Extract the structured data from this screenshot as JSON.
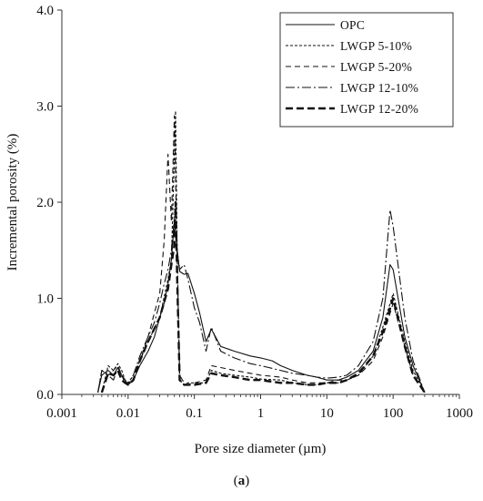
{
  "caption": {
    "open": "(",
    "letter": "a",
    "close": ")"
  },
  "chart_data": {
    "type": "line",
    "xlabel": "Pore size diameter (µm)",
    "ylabel": "Incremental porosity (%)",
    "xscale": "log",
    "xlim": [
      0.001,
      1000
    ],
    "ylim": [
      0,
      4.0
    ],
    "x_ticks": [
      0.001,
      0.01,
      0.1,
      1,
      10,
      100,
      1000
    ],
    "x_tick_labels": [
      "0.001",
      "0.01",
      "0.1",
      "1",
      "10",
      "100",
      "1000"
    ],
    "y_ticks": [
      0,
      1,
      2,
      3,
      4
    ],
    "y_tick_labels": [
      "0.0",
      "1.0",
      "2.0",
      "3.0",
      "4.0"
    ],
    "grid": false,
    "legend_position": "top-right",
    "series": [
      {
        "name": "OPC",
        "color": "#111111",
        "dash": "solid",
        "points": [
          [
            0.0035,
            0.02
          ],
          [
            0.004,
            0.2
          ],
          [
            0.005,
            0.25
          ],
          [
            0.006,
            0.2
          ],
          [
            0.007,
            0.28
          ],
          [
            0.008,
            0.2
          ],
          [
            0.009,
            0.15
          ],
          [
            0.01,
            0.1
          ],
          [
            0.012,
            0.15
          ],
          [
            0.015,
            0.3
          ],
          [
            0.02,
            0.45
          ],
          [
            0.025,
            0.6
          ],
          [
            0.03,
            0.8
          ],
          [
            0.035,
            0.95
          ],
          [
            0.04,
            1.15
          ],
          [
            0.045,
            1.4
          ],
          [
            0.05,
            1.8
          ],
          [
            0.055,
            1.5
          ],
          [
            0.06,
            1.28
          ],
          [
            0.07,
            1.25
          ],
          [
            0.08,
            1.26
          ],
          [
            0.1,
            1.05
          ],
          [
            0.12,
            0.85
          ],
          [
            0.15,
            0.55
          ],
          [
            0.18,
            0.68
          ],
          [
            0.25,
            0.5
          ],
          [
            0.4,
            0.45
          ],
          [
            0.7,
            0.4
          ],
          [
            1,
            0.38
          ],
          [
            1.5,
            0.35
          ],
          [
            2,
            0.3
          ],
          [
            3,
            0.25
          ],
          [
            5,
            0.2
          ],
          [
            7,
            0.18
          ],
          [
            10,
            0.15
          ],
          [
            15,
            0.15
          ],
          [
            20,
            0.18
          ],
          [
            30,
            0.25
          ],
          [
            50,
            0.45
          ],
          [
            70,
            0.8
          ],
          [
            90,
            1.35
          ],
          [
            100,
            1.3
          ],
          [
            150,
            0.6
          ],
          [
            200,
            0.3
          ],
          [
            300,
            0.02
          ]
        ]
      },
      {
        "name": "LWGP 5-10%",
        "color": "#111111",
        "dash": "3,2",
        "points": [
          [
            0.004,
            0.02
          ],
          [
            0.005,
            0.3
          ],
          [
            0.006,
            0.25
          ],
          [
            0.007,
            0.32
          ],
          [
            0.008,
            0.25
          ],
          [
            0.009,
            0.15
          ],
          [
            0.01,
            0.12
          ],
          [
            0.012,
            0.2
          ],
          [
            0.015,
            0.35
          ],
          [
            0.02,
            0.55
          ],
          [
            0.03,
            0.8
          ],
          [
            0.04,
            1.2
          ],
          [
            0.045,
            1.4
          ],
          [
            0.05,
            2.5
          ],
          [
            0.052,
            2.95
          ],
          [
            0.055,
            1.5
          ],
          [
            0.06,
            0.15
          ],
          [
            0.07,
            0.1
          ],
          [
            0.08,
            0.12
          ],
          [
            0.1,
            0.12
          ],
          [
            0.15,
            0.12
          ],
          [
            0.18,
            0.25
          ],
          [
            0.25,
            0.22
          ],
          [
            0.4,
            0.2
          ],
          [
            0.7,
            0.18
          ],
          [
            1,
            0.16
          ],
          [
            2,
            0.15
          ],
          [
            3,
            0.12
          ],
          [
            5,
            0.1
          ],
          [
            7,
            0.1
          ],
          [
            10,
            0.12
          ],
          [
            15,
            0.12
          ],
          [
            20,
            0.15
          ],
          [
            30,
            0.2
          ],
          [
            50,
            0.4
          ],
          [
            70,
            0.7
          ],
          [
            100,
            1.05
          ],
          [
            150,
            0.55
          ],
          [
            200,
            0.25
          ],
          [
            300,
            0.02
          ]
        ]
      },
      {
        "name": "LWGP 5-20%",
        "color": "#111111",
        "dash": "6,4",
        "points": [
          [
            0.0035,
            0.02
          ],
          [
            0.004,
            0.25
          ],
          [
            0.005,
            0.2
          ],
          [
            0.006,
            0.25
          ],
          [
            0.007,
            0.3
          ],
          [
            0.008,
            0.2
          ],
          [
            0.009,
            0.12
          ],
          [
            0.01,
            0.1
          ],
          [
            0.012,
            0.15
          ],
          [
            0.015,
            0.35
          ],
          [
            0.02,
            0.6
          ],
          [
            0.025,
            0.85
          ],
          [
            0.03,
            1.05
          ],
          [
            0.035,
            1.6
          ],
          [
            0.04,
            2.5
          ],
          [
            0.045,
            1.8
          ],
          [
            0.05,
            2.9
          ],
          [
            0.055,
            1.4
          ],
          [
            0.06,
            0.2
          ],
          [
            0.07,
            0.12
          ],
          [
            0.08,
            0.1
          ],
          [
            0.1,
            0.12
          ],
          [
            0.15,
            0.15
          ],
          [
            0.18,
            0.3
          ],
          [
            0.25,
            0.28
          ],
          [
            0.4,
            0.25
          ],
          [
            0.7,
            0.22
          ],
          [
            1,
            0.2
          ],
          [
            2,
            0.18
          ],
          [
            3,
            0.15
          ],
          [
            5,
            0.12
          ],
          [
            7,
            0.12
          ],
          [
            10,
            0.12
          ],
          [
            15,
            0.15
          ],
          [
            20,
            0.15
          ],
          [
            30,
            0.2
          ],
          [
            50,
            0.35
          ],
          [
            70,
            0.6
          ],
          [
            100,
            0.95
          ],
          [
            150,
            0.5
          ],
          [
            200,
            0.2
          ],
          [
            300,
            0.02
          ]
        ]
      },
      {
        "name": "LWGP 12-10%",
        "color": "#111111",
        "dash": "10,3,2,3",
        "points": [
          [
            0.0035,
            0.02
          ],
          [
            0.004,
            0.25
          ],
          [
            0.005,
            0.2
          ],
          [
            0.006,
            0.15
          ],
          [
            0.007,
            0.28
          ],
          [
            0.008,
            0.2
          ],
          [
            0.009,
            0.15
          ],
          [
            0.01,
            0.1
          ],
          [
            0.012,
            0.2
          ],
          [
            0.015,
            0.4
          ],
          [
            0.02,
            0.6
          ],
          [
            0.025,
            0.75
          ],
          [
            0.03,
            0.95
          ],
          [
            0.035,
            1.15
          ],
          [
            0.04,
            1.3
          ],
          [
            0.045,
            1.5
          ],
          [
            0.05,
            1.85
          ],
          [
            0.055,
            1.5
          ],
          [
            0.06,
            1.3
          ],
          [
            0.07,
            1.35
          ],
          [
            0.08,
            1.2
          ],
          [
            0.1,
            0.9
          ],
          [
            0.12,
            0.75
          ],
          [
            0.15,
            0.45
          ],
          [
            0.18,
            0.7
          ],
          [
            0.25,
            0.45
          ],
          [
            0.4,
            0.38
          ],
          [
            0.7,
            0.32
          ],
          [
            1,
            0.3
          ],
          [
            2,
            0.25
          ],
          [
            3,
            0.22
          ],
          [
            5,
            0.2
          ],
          [
            7,
            0.18
          ],
          [
            10,
            0.17
          ],
          [
            15,
            0.18
          ],
          [
            20,
            0.2
          ],
          [
            30,
            0.3
          ],
          [
            50,
            0.55
          ],
          [
            70,
            1.0
          ],
          [
            90,
            1.92
          ],
          [
            100,
            1.75
          ],
          [
            150,
            0.8
          ],
          [
            200,
            0.35
          ],
          [
            300,
            0.02
          ]
        ]
      },
      {
        "name": "LWGP 12-20%",
        "color": "#111111",
        "dash": "8,4",
        "bold": true,
        "points": [
          [
            0.004,
            0.02
          ],
          [
            0.005,
            0.22
          ],
          [
            0.006,
            0.2
          ],
          [
            0.007,
            0.25
          ],
          [
            0.008,
            0.15
          ],
          [
            0.009,
            0.12
          ],
          [
            0.01,
            0.1
          ],
          [
            0.012,
            0.15
          ],
          [
            0.015,
            0.35
          ],
          [
            0.02,
            0.55
          ],
          [
            0.03,
            0.8
          ],
          [
            0.04,
            1.1
          ],
          [
            0.045,
            1.35
          ],
          [
            0.05,
            1.55
          ],
          [
            0.052,
            2.0
          ],
          [
            0.055,
            1.2
          ],
          [
            0.06,
            0.15
          ],
          [
            0.07,
            0.1
          ],
          [
            0.08,
            0.1
          ],
          [
            0.1,
            0.1
          ],
          [
            0.15,
            0.12
          ],
          [
            0.18,
            0.22
          ],
          [
            0.25,
            0.2
          ],
          [
            0.4,
            0.18
          ],
          [
            0.7,
            0.15
          ],
          [
            1,
            0.15
          ],
          [
            2,
            0.12
          ],
          [
            3,
            0.12
          ],
          [
            5,
            0.1
          ],
          [
            7,
            0.1
          ],
          [
            10,
            0.12
          ],
          [
            15,
            0.12
          ],
          [
            20,
            0.15
          ],
          [
            30,
            0.22
          ],
          [
            50,
            0.4
          ],
          [
            70,
            0.65
          ],
          [
            100,
            1.0
          ],
          [
            150,
            0.5
          ],
          [
            200,
            0.2
          ],
          [
            300,
            0.02
          ]
        ]
      }
    ]
  }
}
